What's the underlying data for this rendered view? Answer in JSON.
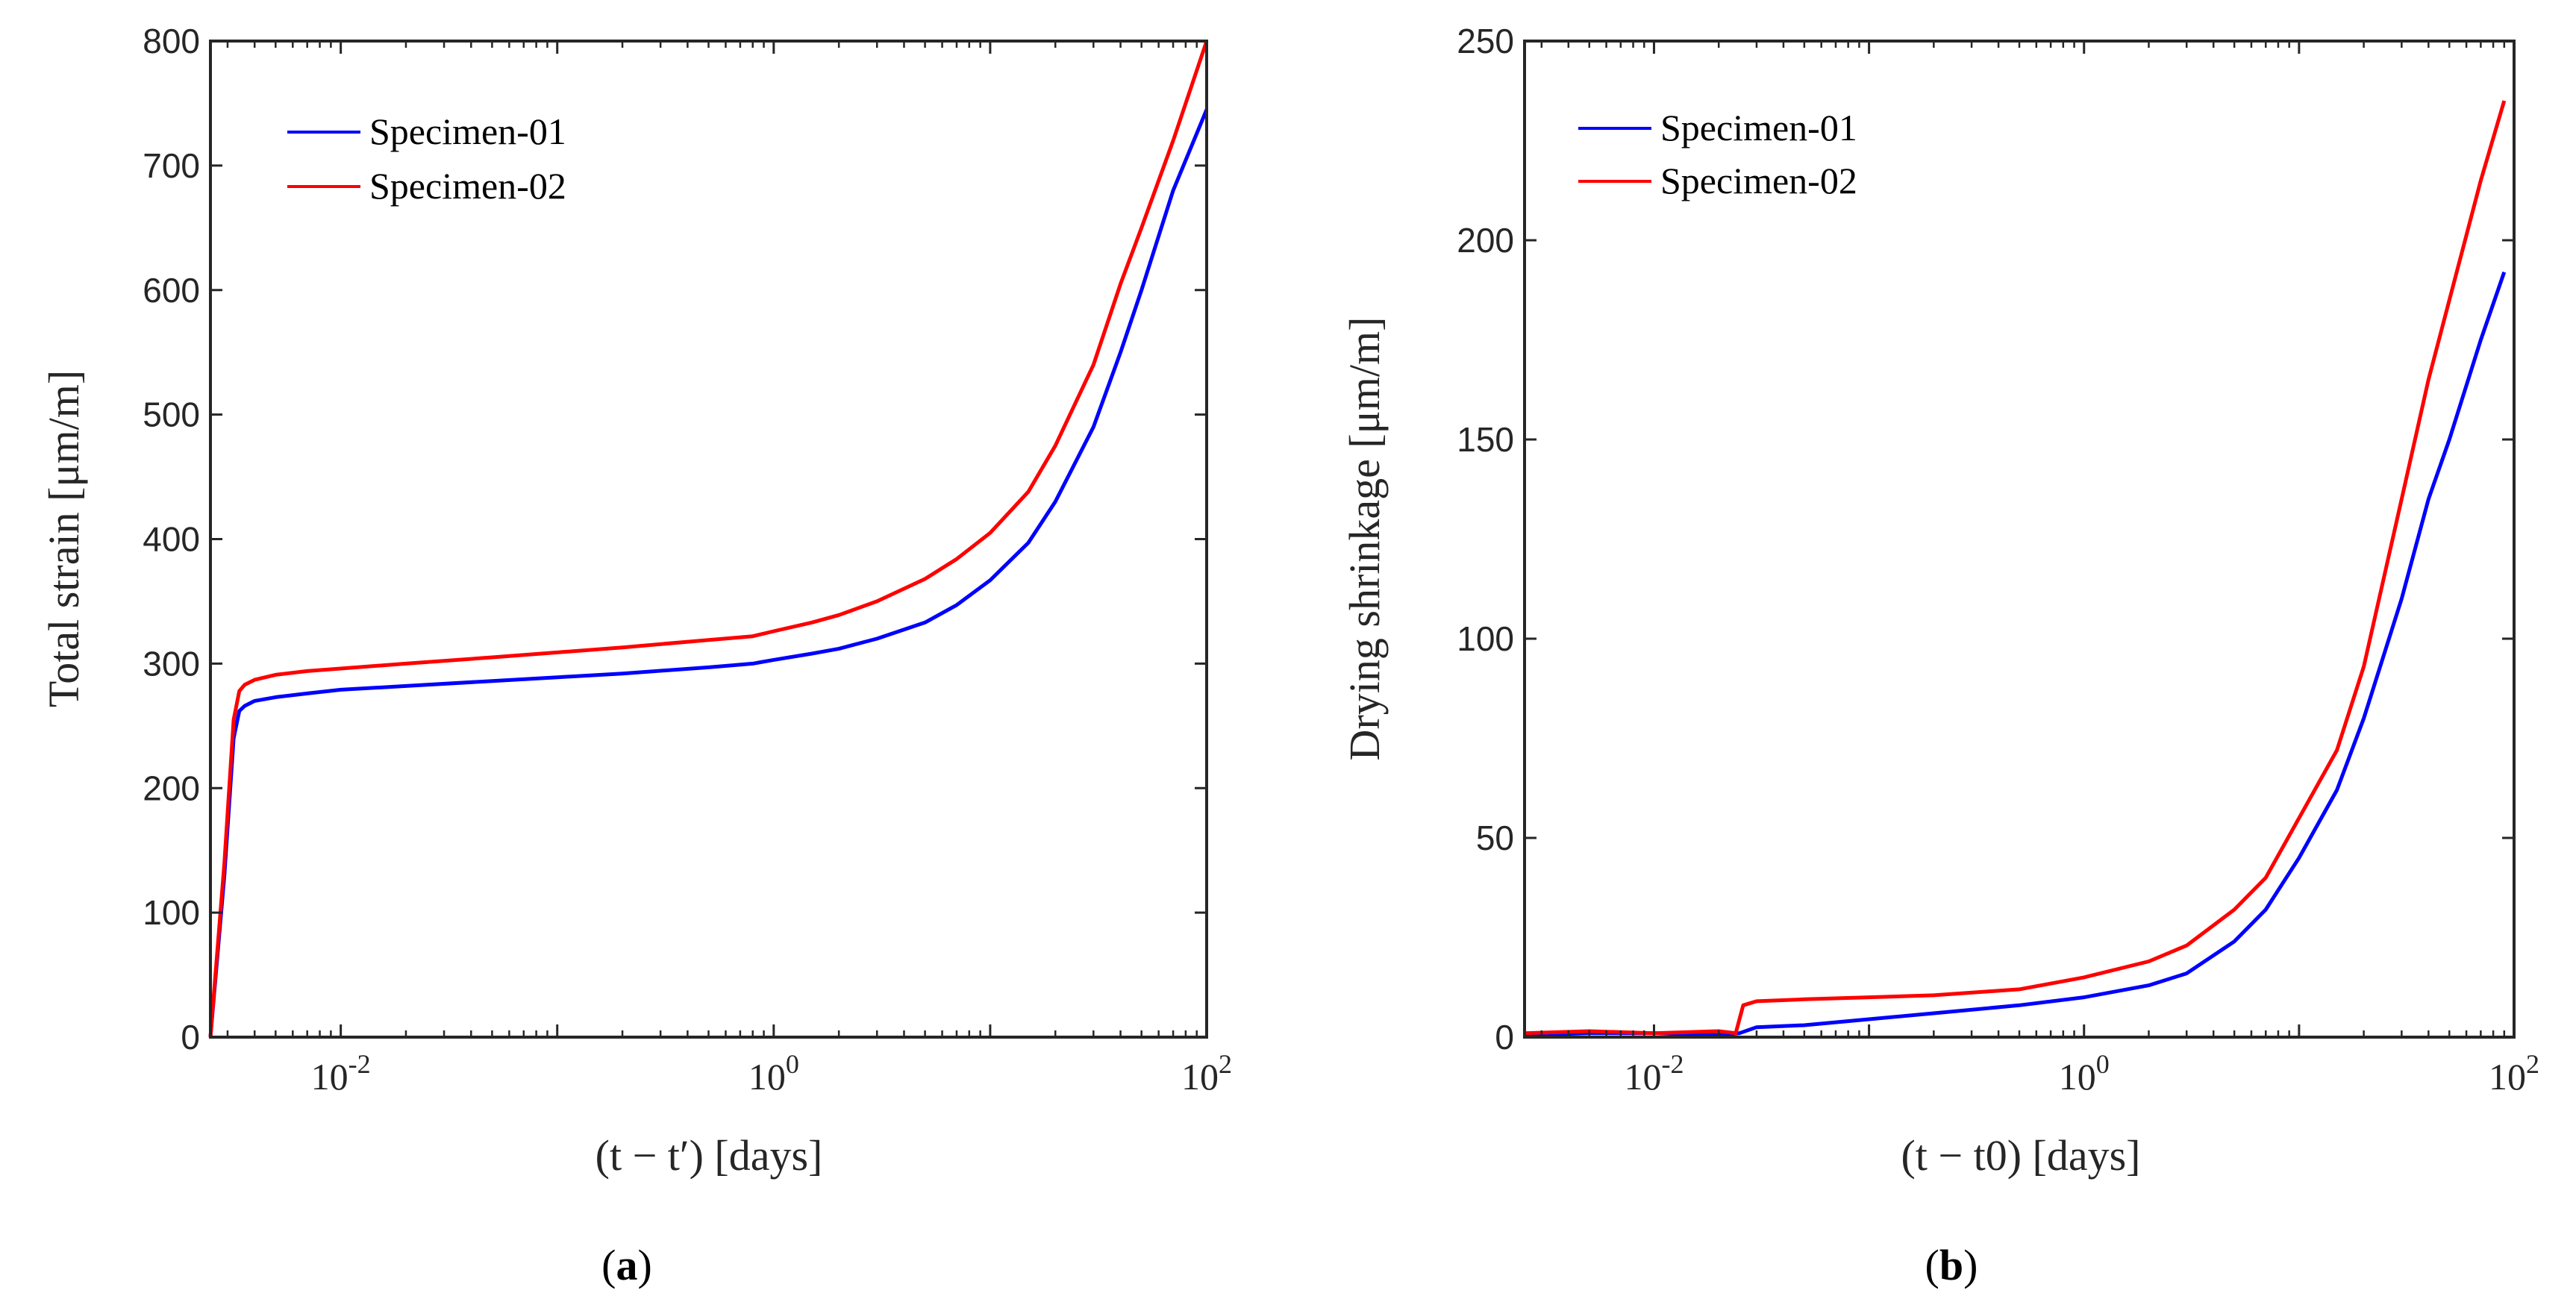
{
  "figure": {
    "panels": [
      {
        "label_open": "(",
        "label_letter": "a",
        "label_close": ")"
      },
      {
        "label_open": "(",
        "label_letter": "b",
        "label_close": ")"
      }
    ]
  },
  "colors": {
    "series1": "#0000ff",
    "series2": "#ff0000",
    "axis": "#262626"
  },
  "chart_data": [
    {
      "type": "line",
      "panel": "a",
      "xscale": "log",
      "xlim": [
        0.0025,
        100
      ],
      "ylim": [
        0,
        800
      ],
      "xlabel": "(t − t′) [days]",
      "ylabel": "Total strain [μm/m]",
      "xticks": [
        {
          "value": 0.01,
          "base": "10",
          "exp": "-2"
        },
        {
          "value": 1,
          "base": "10",
          "exp": "0"
        },
        {
          "value": 100,
          "base": "10",
          "exp": "2"
        }
      ],
      "yticks": [
        0,
        100,
        200,
        300,
        400,
        500,
        600,
        700,
        800
      ],
      "legend_position": "top-left",
      "series": [
        {
          "name": "Specimen-01",
          "color": "#0000ff",
          "x": [
            0.0025,
            0.0029,
            0.0032,
            0.0034,
            0.0036,
            0.004,
            0.005,
            0.007,
            0.01,
            0.02,
            0.05,
            0.1,
            0.2,
            0.5,
            0.8,
            1,
            1.5,
            2,
            3,
            5,
            7,
            10,
            15,
            20,
            30,
            40,
            50,
            70,
            100
          ],
          "y": [
            0,
            130,
            240,
            262,
            266,
            270,
            273,
            276,
            279,
            282,
            286,
            289,
            292,
            297,
            300,
            303,
            308,
            312,
            320,
            333,
            347,
            367,
            397,
            430,
            490,
            550,
            600,
            680,
            745
          ]
        },
        {
          "name": "Specimen-02",
          "color": "#ff0000",
          "x": [
            0.0025,
            0.0029,
            0.0032,
            0.0034,
            0.0036,
            0.004,
            0.005,
            0.007,
            0.01,
            0.02,
            0.05,
            0.1,
            0.2,
            0.5,
            0.8,
            1,
            1.5,
            2,
            3,
            5,
            7,
            10,
            15,
            20,
            30,
            40,
            50,
            70,
            100
          ],
          "y": [
            0,
            140,
            255,
            278,
            283,
            287,
            291,
            294,
            296,
            300,
            305,
            309,
            313,
            319,
            322,
            326,
            333,
            339,
            350,
            368,
            384,
            405,
            438,
            475,
            540,
            605,
            650,
            720,
            800
          ]
        }
      ]
    },
    {
      "type": "line",
      "panel": "b",
      "xscale": "log",
      "xlim": [
        0.0025,
        100
      ],
      "ylim": [
        0,
        250
      ],
      "xlabel": "(t − t0) [days]",
      "ylabel": "Drying shrinkage [μm/m]",
      "xticks": [
        {
          "value": 0.01,
          "base": "10",
          "exp": "-2"
        },
        {
          "value": 1,
          "base": "10",
          "exp": "0"
        },
        {
          "value": 100,
          "base": "10",
          "exp": "2"
        }
      ],
      "yticks": [
        0,
        50,
        100,
        150,
        200,
        250
      ],
      "legend_position": "top-left",
      "series": [
        {
          "name": "Specimen-01",
          "color": "#0000ff",
          "x": [
            0.0025,
            0.005,
            0.01,
            0.02,
            0.025,
            0.03,
            0.05,
            0.1,
            0.2,
            0.5,
            1,
            2,
            3,
            5,
            7,
            10,
            15,
            20,
            30,
            40,
            50,
            70,
            90
          ],
          "y": [
            0.5,
            1,
            1,
            0.5,
            1,
            2.5,
            3,
            4.5,
            6,
            8,
            10,
            13,
            16,
            24,
            32,
            45,
            62,
            80,
            110,
            135,
            150,
            175,
            192
          ]
        },
        {
          "name": "Specimen-02",
          "color": "#ff0000",
          "x": [
            0.0025,
            0.005,
            0.01,
            0.02,
            0.024,
            0.026,
            0.03,
            0.05,
            0.1,
            0.2,
            0.5,
            1,
            2,
            3,
            5,
            7,
            10,
            15,
            20,
            30,
            40,
            50,
            70,
            90
          ],
          "y": [
            1,
            1.5,
            1,
            1.5,
            1,
            8,
            9,
            9.5,
            10,
            10.5,
            12,
            15,
            19,
            23,
            32,
            40,
            55,
            72,
            93,
            135,
            165,
            185,
            215,
            235
          ]
        }
      ]
    }
  ]
}
